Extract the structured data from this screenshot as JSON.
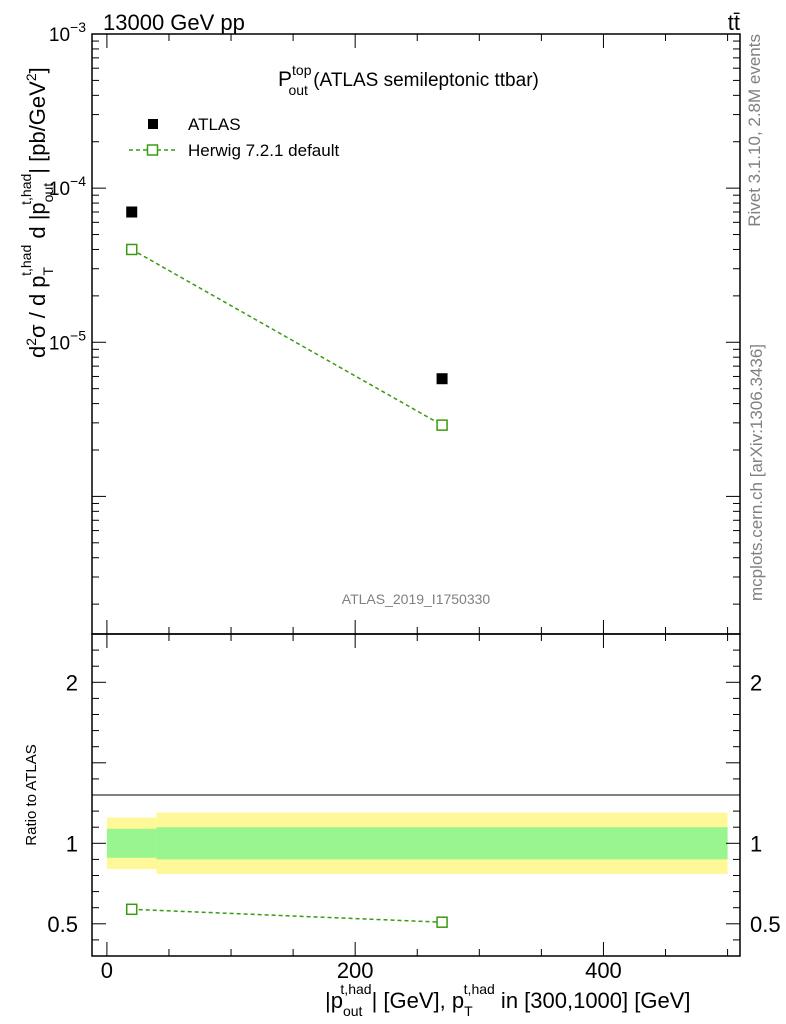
{
  "header": {
    "energy_label": "13000 GeV pp",
    "process_label": "tt̄"
  },
  "title": {
    "main": "P",
    "sup": "top",
    "sub": "out",
    "rest": " (ATLAS semileptonic ttbar)"
  },
  "legend": {
    "data_label": "ATLAS",
    "mc_label": "Herwig 7.2.1 default"
  },
  "side_labels": {
    "rivet": "Rivet 3.1.10,  2.8M events",
    "mcplots": "mcplots.cern.ch [arXiv:1306.3436]"
  },
  "analysis_id": "ATLAS_2019_I1750330",
  "y_label_main": {
    "part1": "d",
    "part1_sup": "2",
    "part2": "σ / d p",
    "part2_sub": "T",
    "part2_sup": "t,had",
    "part3": " d |p",
    "part3_sub": "out",
    "part3_sup": "t,had",
    "part4": "| [pb/GeV",
    "part4_sup": "2",
    "part5": "]"
  },
  "y_label_ratio": "Ratio to ATLAS",
  "x_label": {
    "part1": "|p",
    "part1_sub": "out",
    "part1_sup": "t,had",
    "part2": "| [GeV], p",
    "part2_sub": "T",
    "part2_sup": "t,had",
    "part3": " in [300,1000] [GeV]"
  },
  "colors": {
    "mc": "#3a9a10",
    "band_inner": "#99f590",
    "band_outer": "#fff898",
    "data": "#000000"
  },
  "chart_data": {
    "type": "scatter",
    "x_range": [
      -12,
      510
    ],
    "main": {
      "scale": "log",
      "ylim": [
        1.28e-07,
        0.001
      ],
      "y_tick_labels": [
        {
          "value": 0.001,
          "base": "10",
          "exp": "−3"
        },
        {
          "value": 0.0001,
          "base": "10",
          "exp": "−4"
        },
        {
          "value": 1e-05,
          "base": "10",
          "exp": "−5"
        }
      ],
      "series": [
        {
          "name": "ATLAS",
          "x": [
            20,
            270
          ],
          "y": [
            7e-05,
            5.8e-06
          ]
        },
        {
          "name": "Herwig 7.2.1 default",
          "x": [
            20,
            270
          ],
          "y": [
            4e-05,
            2.9e-06
          ]
        }
      ]
    },
    "ratio": {
      "ylim": [
        0.3,
        2.3
      ],
      "y_ticks": [
        0.5,
        1,
        2
      ],
      "y_tick_labels": [
        "0.5",
        "1",
        "2"
      ],
      "bins": [
        {
          "xlo": 0,
          "xhi": 40,
          "inner": [
            0.91,
            1.09
          ],
          "outer": [
            0.84,
            1.16
          ]
        },
        {
          "xlo": 40,
          "xhi": 500,
          "inner": [
            0.9,
            1.1
          ],
          "outer": [
            0.81,
            1.19
          ]
        }
      ],
      "mc_x": [
        20,
        270
      ],
      "mc_y": [
        0.59,
        0.51
      ]
    },
    "x_ticks": [
      0,
      200,
      400
    ],
    "x_tick_labels": [
      "0",
      "200",
      "400"
    ]
  }
}
